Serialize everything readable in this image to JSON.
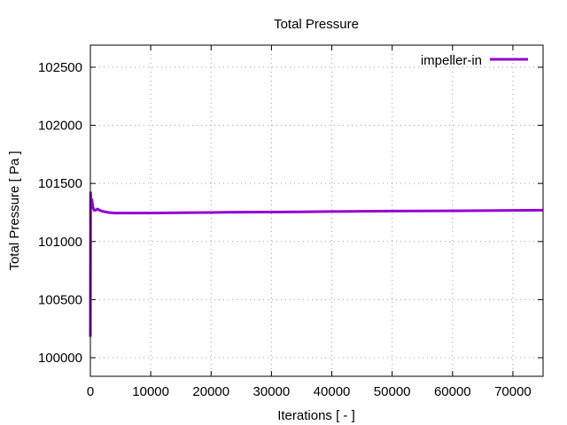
{
  "chart_data": {
    "type": "line",
    "title": "Total Pressure",
    "xlabel": "Iterations [ - ]",
    "ylabel": "Total Pressure [ Pa ]",
    "xlim": [
      0,
      75000
    ],
    "ylim": [
      99840,
      102690
    ],
    "grid": true,
    "legend_position": "top-right",
    "x_ticks": [
      0,
      10000,
      20000,
      30000,
      40000,
      50000,
      60000,
      70000
    ],
    "y_ticks": [
      100000,
      100500,
      101000,
      101500,
      102000,
      102500
    ],
    "series": [
      {
        "name": "impeller-in",
        "color": "#9400d3",
        "x": [
          0,
          40,
          80,
          150,
          250,
          400,
          600,
          900,
          1200,
          1500,
          2000,
          3000,
          4000,
          5000,
          7000,
          10000,
          15000,
          20000,
          25000,
          30000,
          35000,
          40000,
          45000,
          50000,
          55000,
          60000,
          65000,
          70000,
          75000
        ],
        "y": [
          100180,
          101420,
          101380,
          101300,
          101360,
          101300,
          101270,
          101270,
          101280,
          101270,
          101260,
          101250,
          101245,
          101245,
          101245,
          101245,
          101248,
          101250,
          101253,
          101254,
          101255,
          101258,
          101260,
          101262,
          101263,
          101264,
          101266,
          101268,
          101270
        ]
      }
    ]
  }
}
